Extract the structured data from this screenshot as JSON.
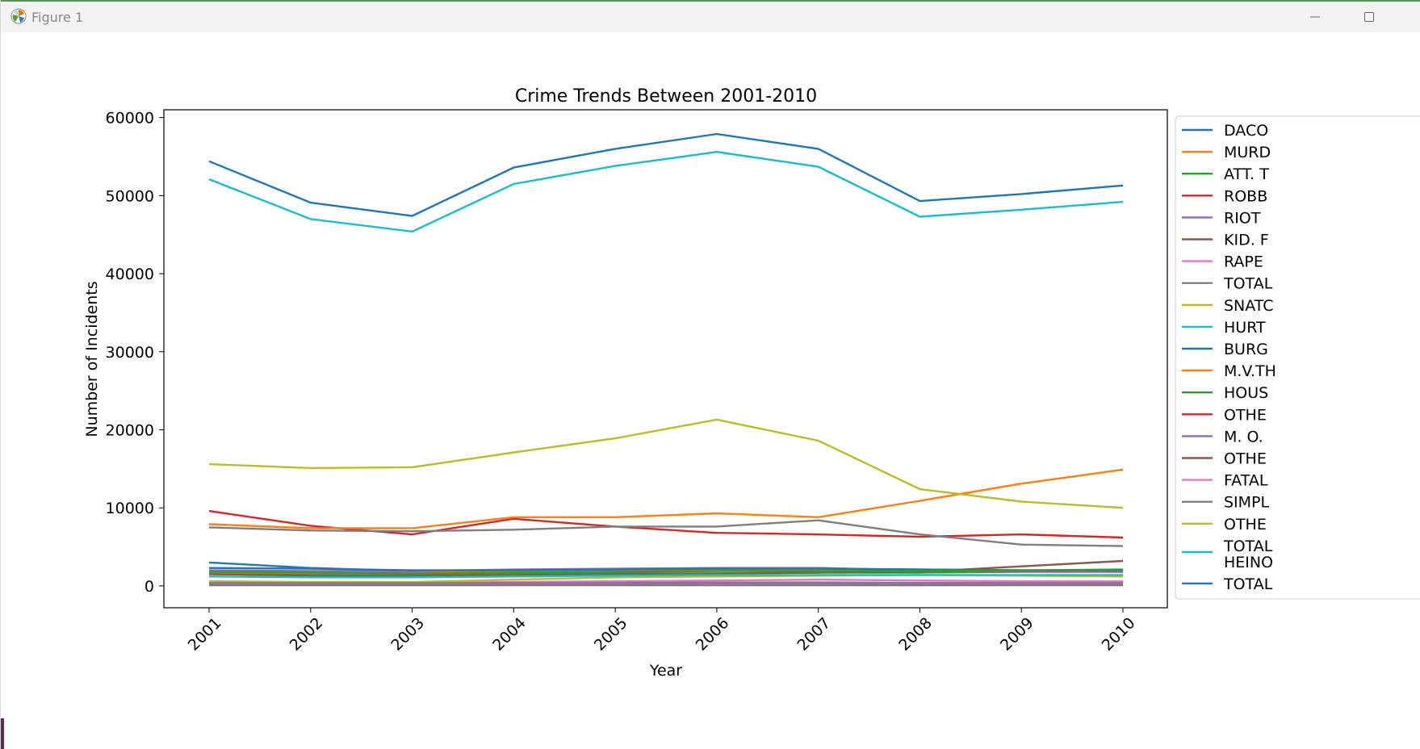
{
  "window": {
    "title": "Figure 1",
    "icons": {
      "app": "matplotlib-logo-icon",
      "minimize": "minimize-icon",
      "maximize": "maximize-icon"
    }
  },
  "chart_data": {
    "type": "line",
    "title": "Crime Trends Between 2001-2010",
    "xlabel": "Year",
    "ylabel": "Number of Incidents",
    "x": [
      2001,
      2002,
      2003,
      2004,
      2005,
      2006,
      2007,
      2008,
      2009,
      2010
    ],
    "xticks": [
      "2001",
      "2002",
      "2003",
      "2004",
      "2005",
      "2006",
      "2007",
      "2008",
      "2009",
      "2010"
    ],
    "yticks": [
      "0",
      "10000",
      "20000",
      "30000",
      "40000",
      "50000",
      "60000"
    ],
    "ylim": [
      -2800,
      61000
    ],
    "grid": false,
    "legend_position": "outside-right",
    "series": [
      {
        "name": "DACO",
        "color": "#1f77b4",
        "values": [
          3000,
          2300,
          1900,
          2000,
          2100,
          2200,
          2200,
          2100,
          2000,
          1900
        ]
      },
      {
        "name": "MURD",
        "color": "#ff7f0e",
        "values": [
          1700,
          1600,
          1700,
          1800,
          1900,
          2000,
          2000,
          2000,
          1900,
          1900
        ]
      },
      {
        "name": "ATT. T",
        "color": "#2ca02c",
        "values": [
          1500,
          1400,
          1400,
          1500,
          1600,
          1600,
          1700,
          1700,
          1800,
          1800
        ]
      },
      {
        "name": "ROBB",
        "color": "#d62728",
        "values": [
          9600,
          7700,
          6600,
          8600,
          7600,
          6800,
          6600,
          6300,
          6600,
          6200
        ]
      },
      {
        "name": "RIOT",
        "color": "#9467bd",
        "values": [
          2000,
          1900,
          1900,
          2100,
          2200,
          2300,
          2300,
          2000,
          1900,
          1800
        ]
      },
      {
        "name": "KID. F",
        "color": "#8c564b",
        "values": [
          1500,
          1300,
          1300,
          1400,
          1500,
          1600,
          1700,
          1800,
          2500,
          3200
        ]
      },
      {
        "name": "RAPE",
        "color": "#e377c2",
        "values": [
          500,
          400,
          400,
          500,
          600,
          700,
          800,
          700,
          600,
          600
        ]
      },
      {
        "name": "TOTAL",
        "color": "#7f7f7f",
        "values": [
          7500,
          7100,
          7000,
          7200,
          7600,
          7600,
          8400,
          6600,
          5300,
          5100
        ]
      },
      {
        "name": "SNATC",
        "color": "#bcbd22",
        "values": [
          600,
          500,
          500,
          800,
          1100,
          1200,
          1300,
          1400,
          1300,
          1200
        ]
      },
      {
        "name": "HURT",
        "color": "#17becf",
        "values": [
          1200,
          1100,
          1100,
          1200,
          1300,
          1400,
          1400,
          1400,
          1400,
          1400
        ]
      },
      {
        "name": "BURG",
        "color": "#1f77b4",
        "values": [
          2300,
          2200,
          2000,
          2000,
          2100,
          2200,
          2200,
          2100,
          2000,
          2000
        ]
      },
      {
        "name": "M.V.TH",
        "color": "#ff7f0e",
        "values": [
          7900,
          7400,
          7400,
          8800,
          8800,
          9300,
          8800,
          10900,
          13100,
          14900
        ]
      },
      {
        "name": "HOUS",
        "color": "#2ca02c",
        "values": [
          1800,
          1700,
          1600,
          1700,
          1800,
          1900,
          1900,
          1900,
          2000,
          2100
        ]
      },
      {
        "name": "OTHE",
        "color": "#d62728",
        "values": [
          300,
          250,
          250,
          300,
          300,
          350,
          350,
          300,
          300,
          300
        ]
      },
      {
        "name": "M. O.",
        "color": "#9467bd",
        "values": [
          400,
          350,
          350,
          400,
          400,
          450,
          450,
          400,
          400,
          400
        ]
      },
      {
        "name": "OTHE",
        "color": "#8c564b",
        "values": [
          100,
          100,
          100,
          100,
          100,
          100,
          100,
          100,
          100,
          100
        ]
      },
      {
        "name": "FATAL",
        "color": "#e377c2",
        "values": [
          200,
          200,
          200,
          200,
          200,
          200,
          200,
          200,
          200,
          200
        ]
      },
      {
        "name": "SIMPL",
        "color": "#7f7f7f",
        "values": [
          200,
          200,
          200,
          200,
          200,
          250,
          250,
          200,
          200,
          200
        ]
      },
      {
        "name": "OTHE",
        "color": "#bcbd22",
        "values": [
          15600,
          15100,
          15200,
          17100,
          18900,
          21300,
          18600,
          12400,
          10800,
          10000
        ]
      },
      {
        "name": "TOTAL HEINO",
        "color": "#17becf",
        "values": [
          52100,
          47000,
          45400,
          51500,
          53800,
          55600,
          53700,
          47300,
          48200,
          49200
        ]
      },
      {
        "name": "TOTAL",
        "color": "#1f77b4",
        "values": [
          54400,
          49100,
          47400,
          53600,
          56000,
          57900,
          56000,
          49300,
          50200,
          51300
        ]
      }
    ]
  }
}
